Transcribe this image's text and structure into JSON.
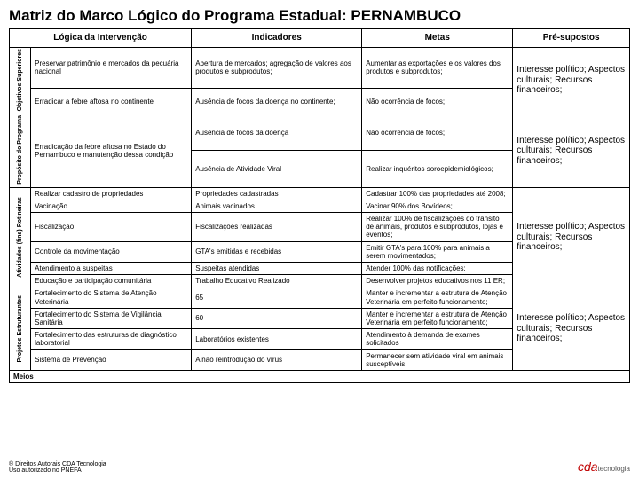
{
  "title_prefix": "Matriz do Marco Lógico do Programa Estadual:  ",
  "title_state": "PERNAMBUCO",
  "headers": {
    "logica": "Lógica da Intervenção",
    "indicadores": "Indicadores",
    "metas": "Metas",
    "presupostos": "Pré-supostos"
  },
  "side": {
    "objetivos": "Objetivos Superiores",
    "proposito": "Propósito do Programa",
    "atividades": "Atividades (fins) Rotineiras",
    "projetos": "Projetos Estruturantes"
  },
  "rows": {
    "obj1": {
      "logica": "Preservar patrimônio e mercados da pecuária nacional",
      "ind": "Abertura de mercados; agregação de valores aos produtos e subprodutos;",
      "metas": "Aumentar as exportações e os valores dos produtos e subprodutos;"
    },
    "obj2": {
      "logica": "Erradicar a febre aftosa no continente",
      "ind": "Ausência de focos da doença no continente;",
      "metas": "Não ocorrência de focos;"
    },
    "prop1": {
      "logica": "Erradicação da febre aftosa no Estado do Pernambuco e manutenção dessa condição",
      "ind": "Ausência de focos da doença",
      "metas": "Não ocorrência de focos;"
    },
    "prop2": {
      "ind": "Ausência de Atividade Viral",
      "metas": "Realizar inquéritos soroepidemiológicos;"
    },
    "atv1": {
      "logica": "Realizar cadastro de propriedades",
      "ind": "Propriedades cadastradas",
      "metas": "Cadastrar 100% das propriedades até 2008;"
    },
    "atv2": {
      "logica": "Vacinação",
      "ind": "Animais vacinados",
      "metas": "Vacinar 90% dos Bovídeos;"
    },
    "atv3": {
      "logica": "Fiscalização",
      "ind": "Fiscalizações realizadas",
      "metas": "Realizar 100% de fiscalizações do trânsito de animais, produtos e subprodutos, lojas e eventos;"
    },
    "atv4": {
      "logica": "Controle da movimentação",
      "ind": "GTA's emitidas e recebidas",
      "metas": "Emitir GTA's para 100% para animais a serem movimentados;"
    },
    "atv5": {
      "logica": "Atendimento a suspeitas",
      "ind": "Suspeitas atendidas",
      "metas": "Atender 100% das notificações;"
    },
    "atv6": {
      "logica": "Educação e participação comunitária",
      "ind": "Trabalho Educativo Realizado",
      "metas": "Desenvolver projetos educativos nos 11 ER;"
    },
    "proj1": {
      "logica": "Fortalecimento do Sistema de Atenção Veterinária",
      "ind": "65",
      "metas": "Manter e incrementar a estrutura de Atenção Veterinária em perfeito funcionamento;"
    },
    "proj2": {
      "logica": "Fortalecimento do Sistema de Vigilância Sanitária",
      "ind": "60",
      "metas": "Manter e incrementar a estrutura de Atenção Veterinária em perfeito funcionamento;"
    },
    "proj3": {
      "logica": "Fortalecimento das estruturas de diagnóstico laboratorial",
      "ind": "Laboratórios existentes",
      "metas": "Atendimento à demanda de exames solicitados"
    },
    "proj4": {
      "logica": "Sistema de Prevenção",
      "ind": "A não reintrodução do vírus",
      "metas": "Permanecer sem atividade viral em animais susceptíveis;"
    }
  },
  "pre": "Interesse político; Aspectos culturais; Recursos financeiros;",
  "meios": "Meios",
  "footer": {
    "copy1": "® Direitos Autorais CDA Tecnologia",
    "copy2": "Uso autorizado no PNEFA",
    "brand": "cda",
    "brand_sub": "tecnologia"
  }
}
